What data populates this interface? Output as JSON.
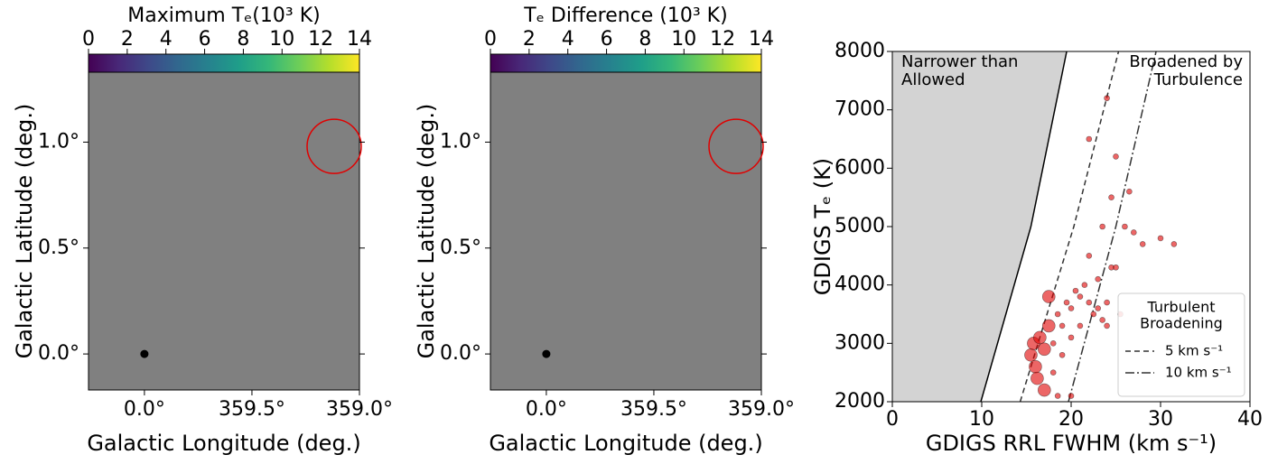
{
  "chart_data": [
    {
      "type": "map",
      "colorbar_label": "Maximum Tₑ(10³ K)",
      "cmap": "viridis",
      "clim": [
        0,
        14
      ],
      "cticks": [
        0,
        2,
        4,
        6,
        8,
        10,
        12,
        14
      ],
      "xlabel": "Galactic Longitude (deg.)",
      "ylabel": "Galactic Latitude (deg.)",
      "xlim": [
        0.26,
        -1.0
      ],
      "ylim": [
        -0.17,
        1.33
      ],
      "xticks": [
        {
          "value": 0,
          "label": "0.0°"
        },
        {
          "value": -0.5,
          "label": "359.5°"
        },
        {
          "value": -1.0,
          "label": "359.0°"
        }
      ],
      "yticks": [
        {
          "value": 0,
          "label": "0.0°"
        },
        {
          "value": 0.5,
          "label": "0.5°"
        },
        {
          "value": 1.0,
          "label": "1.0°"
        }
      ]
    },
    {
      "type": "map",
      "colorbar_label": "Tₑ Difference (10³ K)",
      "cmap": "viridis",
      "clim": [
        0,
        14
      ],
      "cticks": [
        0,
        2,
        4,
        6,
        8,
        10,
        12,
        14
      ],
      "xlabel": "Galactic Longitude (deg.)",
      "ylabel": "Galactic Latitude (deg.)",
      "xlim": [
        0.26,
        -1.0
      ],
      "ylim": [
        -0.17,
        1.33
      ],
      "xticks": [
        {
          "value": 0,
          "label": "0.0°"
        },
        {
          "value": -0.5,
          "label": "359.5°"
        },
        {
          "value": -1.0,
          "label": "359.0°"
        }
      ],
      "yticks": [
        {
          "value": 0,
          "label": "0.0°"
        },
        {
          "value": 0.5,
          "label": "0.5°"
        },
        {
          "value": 1.0,
          "label": "1.0°"
        }
      ]
    },
    {
      "type": "scatter",
      "xlabel": "GDIGS RRL FWHM (km s⁻¹)",
      "ylabel": "GDIGS Tₑ (K)",
      "xlim": [
        0,
        40
      ],
      "ylim": [
        2000,
        8000
      ],
      "xticks": [
        0,
        10,
        20,
        30,
        40
      ],
      "yticks": [
        2000,
        3000,
        4000,
        5000,
        6000,
        7000,
        8000
      ],
      "annotations": [
        [
          "Narrower than",
          "Allowed"
        ],
        [
          "Broadened by",
          "Turbulence"
        ]
      ],
      "legend_title": [
        "Turbulent",
        "Broadening"
      ],
      "legend": "lower right",
      "points": {
        "color": "#e00000",
        "x": [
          15.5,
          15.8,
          16,
          16.5,
          16.2,
          17,
          17.5,
          17,
          18,
          18.5,
          18,
          19,
          19.5,
          19,
          20,
          20.5,
          20,
          21,
          21.5,
          21,
          22,
          22.5,
          23,
          23.5,
          24,
          24.5,
          24,
          23,
          25,
          25.5,
          22,
          23.5,
          24.5,
          25,
          26,
          27,
          28,
          30,
          31.5,
          22,
          24,
          26.5,
          20,
          18.5,
          17.5
        ],
        "y": [
          2800,
          3000,
          2600,
          3100,
          2400,
          2900,
          3300,
          2200,
          3000,
          3500,
          2500,
          3300,
          3700,
          2800,
          3600,
          3900,
          3100,
          3800,
          4000,
          3300,
          3700,
          3500,
          3600,
          3400,
          3700,
          4300,
          3300,
          4100,
          4300,
          3500,
          4500,
          5000,
          5500,
          6200,
          5000,
          4900,
          4700,
          4800,
          4700,
          6500,
          7200,
          5600,
          2100,
          2100,
          3800
        ]
      },
      "lines": [
        {
          "color": "#000000",
          "dash": "none",
          "fill": "#d3d3d3",
          "x": [
            9.9,
            15.5,
            19.5
          ],
          "y": [
            2000,
            5000,
            8000
          ]
        },
        {
          "name": "5 km s⁻¹",
          "color": "#333333",
          "dash": "6 4",
          "x": [
            14.3,
            20.3,
            25.3
          ],
          "y": [
            2000,
            5000,
            8000
          ]
        },
        {
          "name": "10 km s⁻¹",
          "color": "#333333",
          "dash": "10 3 2 3",
          "x": [
            19.7,
            25.0,
            29.5
          ],
          "y": [
            2000,
            5000,
            8000
          ]
        }
      ]
    }
  ]
}
